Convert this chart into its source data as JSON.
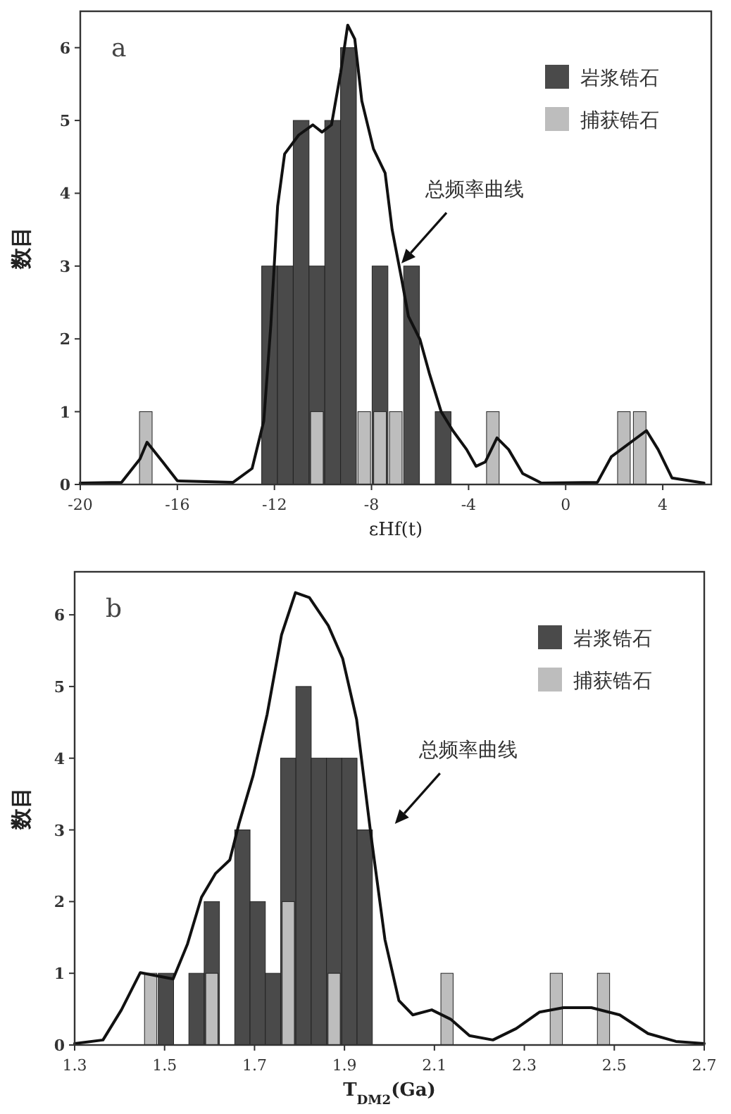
{
  "chart_data": [
    {
      "type": "bar",
      "xlabel": "εHf(t)",
      "ylabel": "数目",
      "xlim": [
        -20,
        6
      ],
      "ylim": [
        0,
        6.5
      ],
      "xticks": [
        -20,
        -16,
        -12,
        -8,
        -4,
        0,
        4
      ],
      "yticks": [
        0,
        1,
        2,
        3,
        4,
        5,
        6
      ],
      "legend": "top right",
      "grid": false,
      "series": [
        {
          "name": "岩浆锆石",
          "color": "#4a4a4a",
          "x": [
            -12.2,
            -11.55,
            -10.9,
            -10.25,
            -9.6,
            -8.95,
            -7.65,
            -6.35,
            -5.05
          ],
          "values": [
            3,
            3,
            5,
            3,
            5,
            6,
            3,
            3,
            1
          ]
        },
        {
          "name": "捕获锆石",
          "color": "#bdbdbd",
          "x": [
            -17.3,
            -10.25,
            -8.3,
            -7.65,
            -7.0,
            -3.0,
            2.4,
            3.05
          ],
          "values": [
            1,
            1,
            1,
            1,
            1,
            1,
            1,
            1
          ]
        },
        {
          "type": "line",
          "color": "#111111",
          "x": [
            -20,
            -18.3,
            -17.54,
            -17.25,
            -16.58,
            -16.0,
            -13.7,
            -12.92,
            -12.44,
            -12.15,
            -11.87,
            -11.58,
            -11.0,
            -10.42,
            -10.04,
            -9.65,
            -9.27,
            -8.98,
            -8.69,
            -8.4,
            -7.92,
            -7.44,
            -7.15,
            -6.77,
            -6.48,
            -6.0,
            -5.62,
            -5.13,
            -4.65,
            -4.08,
            -3.69,
            -3.31,
            -2.83,
            -2.35,
            -1.77,
            -1.0,
            1.31,
            1.88,
            3.33,
            3.81,
            4.38,
            5.7
          ],
          "values": [
            0.02,
            0.03,
            0.35,
            0.58,
            0.3,
            0.05,
            0.03,
            0.22,
            0.87,
            2.18,
            3.82,
            4.54,
            4.8,
            4.94,
            4.84,
            4.94,
            5.66,
            6.31,
            6.12,
            5.27,
            4.61,
            4.28,
            3.5,
            2.84,
            2.31,
            1.99,
            1.53,
            1.0,
            0.74,
            0.48,
            0.25,
            0.31,
            0.64,
            0.48,
            0.15,
            0.02,
            0.03,
            0.38,
            0.74,
            0.48,
            0.09,
            0.02
          ]
        }
      ],
      "annotations": [
        "a",
        "总频率曲线"
      ]
    },
    {
      "type": "bar",
      "xlabel": "T$_{DM2}$(Ga)",
      "ylabel": "数目",
      "xlim": [
        1.3,
        2.7
      ],
      "ylim": [
        0,
        6.6
      ],
      "xticks": [
        1.3,
        1.5,
        1.7,
        1.9,
        2.1,
        2.3,
        2.5,
        2.7
      ],
      "yticks": [
        0,
        1,
        2,
        3,
        4,
        5,
        6
      ],
      "legend": "top right",
      "grid": false,
      "series": [
        {
          "name": "岩浆锆石",
          "color": "#4a4a4a",
          "x": [
            1.503,
            1.571,
            1.605,
            1.673,
            1.707,
            1.741,
            1.775,
            1.809,
            1.843,
            1.877,
            1.911,
            1.945
          ],
          "values": [
            1,
            1,
            2,
            3,
            2,
            1,
            4,
            5,
            4,
            4,
            4,
            3
          ]
        },
        {
          "name": "捕获锆石",
          "color": "#bdbdbd",
          "x": [
            1.469,
            1.605,
            1.775,
            1.877,
            2.128,
            2.371,
            2.476
          ],
          "values": [
            1,
            1,
            2,
            1,
            1,
            1,
            1
          ]
        },
        {
          "type": "line",
          "color": "#111111",
          "x": [
            1.3,
            1.363,
            1.404,
            1.446,
            1.519,
            1.551,
            1.582,
            1.613,
            1.645,
            1.666,
            1.697,
            1.728,
            1.76,
            1.791,
            1.822,
            1.864,
            1.896,
            1.927,
            1.958,
            1.99,
            2.021,
            2.052,
            2.094,
            2.136,
            2.178,
            2.23,
            2.282,
            2.334,
            2.387,
            2.449,
            2.512,
            2.575,
            2.637,
            2.7
          ],
          "values": [
            0.02,
            0.07,
            0.49,
            1.01,
            0.92,
            1.41,
            2.06,
            2.39,
            2.58,
            3.1,
            3.76,
            4.61,
            5.72,
            6.31,
            6.24,
            5.85,
            5.39,
            4.54,
            2.97,
            1.47,
            0.62,
            0.42,
            0.49,
            0.36,
            0.13,
            0.07,
            0.23,
            0.46,
            0.52,
            0.52,
            0.42,
            0.16,
            0.05,
            0.02
          ]
        }
      ],
      "annotations": [
        "b",
        "总频率曲线"
      ]
    }
  ]
}
